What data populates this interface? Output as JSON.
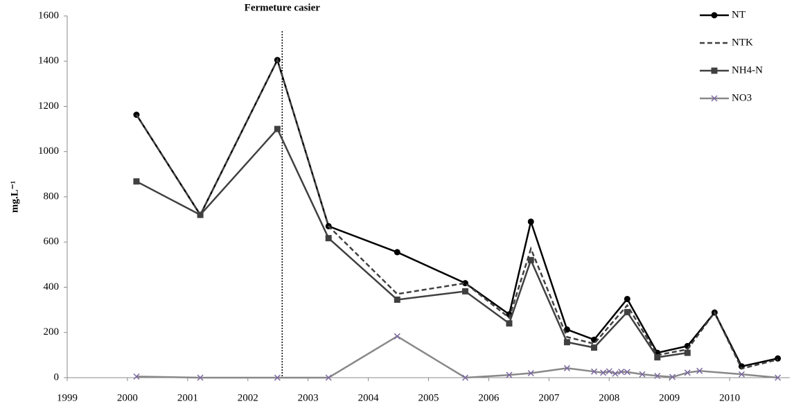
{
  "chart_data": {
    "type": "line",
    "ylabel": "mg.L⁻¹",
    "annotation": {
      "text": "Fermeture casier",
      "x": 2002.57
    },
    "xlim": [
      1999,
      2011
    ],
    "xticks": [
      1999,
      2000,
      2001,
      2002,
      2003,
      2004,
      2005,
      2006,
      2007,
      2008,
      2009,
      2010
    ],
    "ylim": [
      0,
      1600
    ],
    "yticks": [
      0,
      200,
      400,
      600,
      800,
      1000,
      1200,
      1400,
      1600
    ],
    "legend": "top-right",
    "series": [
      {
        "name": "NT",
        "color": "#000000",
        "dash": false,
        "marker": "circle",
        "x": [
          2000.15,
          2001.21,
          2002.49,
          2003.34,
          2004.48,
          2005.61,
          2006.34,
          2006.7,
          2007.3,
          2007.75,
          2008.3,
          2008.8,
          2009.3,
          2009.75,
          2010.2,
          2010.8
        ],
        "values": [
          1163,
          720,
          1405,
          670,
          555,
          418,
          280,
          690,
          213,
          168,
          348,
          110,
          140,
          288,
          50,
          85
        ]
      },
      {
        "name": "NTK",
        "color": "#404040",
        "dash": true,
        "marker": "none",
        "x": [
          2000.15,
          2001.21,
          2002.49,
          2003.34,
          2004.48,
          2005.61,
          2006.34,
          2006.7,
          2007.3,
          2007.75,
          2008.3,
          2008.8,
          2009.3,
          2009.75,
          2010.2,
          2010.8
        ],
        "values": [
          1163,
          720,
          1405,
          670,
          370,
          418,
          265,
          570,
          180,
          150,
          320,
          100,
          125,
          288,
          40,
          80
        ]
      },
      {
        "name": "NH4-N",
        "color": "#404040",
        "dash": false,
        "marker": "square",
        "x": [
          2000.15,
          2001.21,
          2002.49,
          2003.34,
          2004.48,
          2005.61,
          2006.34,
          2006.7,
          2007.3,
          2007.75,
          2008.3,
          2008.8,
          2009.3
        ],
        "values": [
          868,
          720,
          1100,
          617,
          345,
          382,
          240,
          520,
          157,
          133,
          290,
          90,
          110
        ]
      },
      {
        "name": "NO3",
        "color": "#888888",
        "markercolor": "#7b68a0",
        "dash": false,
        "marker": "x",
        "x": [
          2000.15,
          2001.21,
          2002.49,
          2003.34,
          2004.48,
          2005.61,
          2006.34,
          2006.7,
          2007.3,
          2007.75,
          2007.9,
          2008.0,
          2008.1,
          2008.2,
          2008.3,
          2008.55,
          2008.8,
          2009.05,
          2009.3,
          2009.5,
          2010.2,
          2010.8
        ],
        "values": [
          5,
          0,
          0,
          0,
          183,
          0,
          12,
          20,
          42,
          27,
          22,
          28,
          18,
          26,
          25,
          15,
          8,
          3,
          22,
          30,
          15,
          0
        ]
      }
    ]
  }
}
